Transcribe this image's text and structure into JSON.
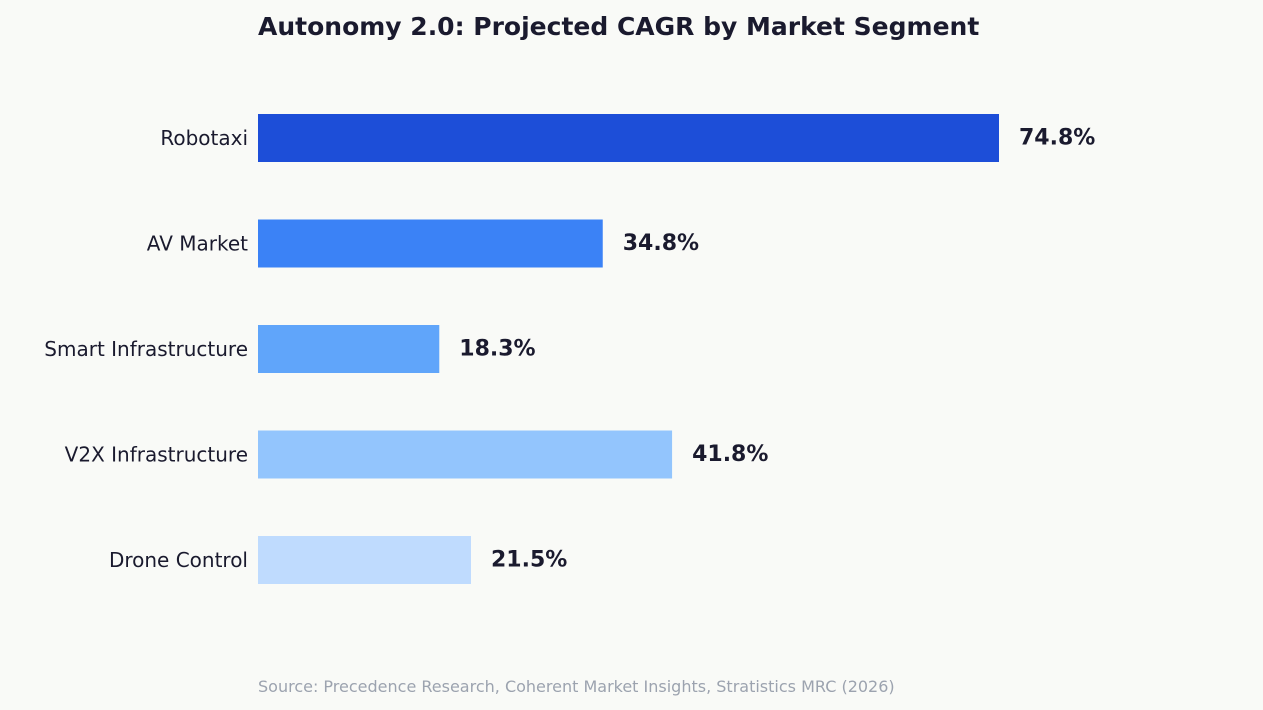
{
  "chart_data": {
    "type": "bar",
    "orientation": "horizontal",
    "title": "Autonomy 2.0: Projected CAGR by Market Segment",
    "categories": [
      "Robotaxi",
      "AV Market",
      "Smart Infrastructure",
      "V2X Infrastructure",
      "Drone Control"
    ],
    "values": [
      74.8,
      34.8,
      18.3,
      41.8,
      21.5
    ],
    "value_labels": [
      "74.8%",
      "34.8%",
      "18.3%",
      "41.8%",
      "21.5%"
    ],
    "colors": [
      "#1d4ed8",
      "#3b82f6",
      "#60a5fa",
      "#93c5fd",
      "#bfdbfe"
    ],
    "xlabel": "",
    "ylabel": "",
    "xlim": [
      0,
      100
    ],
    "grid": false,
    "legend": "none",
    "source": "Source: Precedence Research, Coherent Market Insights, Stratistics MRC (2026)"
  }
}
